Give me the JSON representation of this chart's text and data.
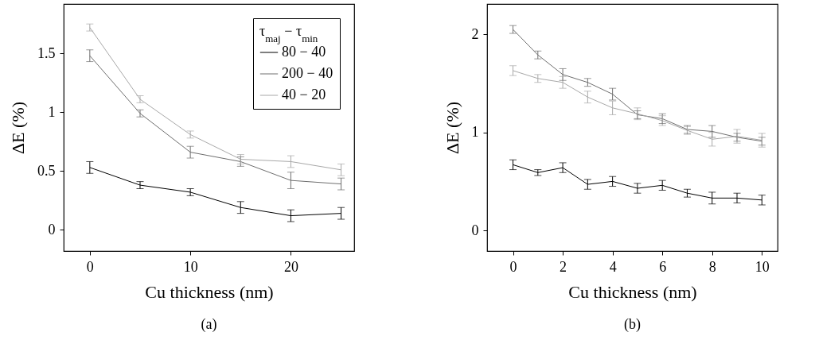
{
  "chart_data": [
    {
      "type": "line",
      "xlabel": "Cu thickness (nm)",
      "ylabel": "ΔE (%)",
      "annotations": [
        "(a)"
      ],
      "legend_title": "τ$_{maj}$ − τ$_{min}$",
      "legend": "top right",
      "marker": "none",
      "x": [
        0,
        5,
        10,
        15,
        20,
        25
      ],
      "xlim": [
        -2.6,
        26.3
      ],
      "xticks": [
        0,
        10,
        20
      ],
      "ylim": [
        -0.18,
        1.92
      ],
      "yticks": [
        0,
        0.5,
        1,
        1.5
      ],
      "series": [
        {
          "name": "80 − 40",
          "color": "#000000",
          "values": [
            0.53,
            0.38,
            0.32,
            0.19,
            0.12,
            0.14
          ],
          "errors": [
            0.05,
            0.03,
            0.03,
            0.05,
            0.05,
            0.05
          ]
        },
        {
          "name": "200 − 40",
          "color": "#6e6e6e",
          "values": [
            1.48,
            0.99,
            0.66,
            0.58,
            0.42,
            0.39
          ],
          "errors": [
            0.05,
            0.03,
            0.05,
            0.04,
            0.07,
            0.05
          ]
        },
        {
          "name": "40 − 20",
          "color": "#a8a8a8",
          "values": [
            1.72,
            1.11,
            0.81,
            0.6,
            0.58,
            0.51
          ],
          "errors": [
            0.03,
            0.03,
            0.03,
            0.04,
            0.05,
            0.05
          ]
        }
      ]
    },
    {
      "type": "line",
      "xlabel": "Cu thickness (nm)",
      "ylabel": "ΔE (%)",
      "annotations": [
        "(b)"
      ],
      "marker": "none",
      "x": [
        0,
        1,
        2,
        3,
        4,
        5,
        6,
        7,
        8,
        9,
        10
      ],
      "xlim": [
        -1.04,
        10.63
      ],
      "xticks": [
        0,
        2,
        4,
        6,
        8,
        10
      ],
      "ylim": [
        -0.21,
        2.31
      ],
      "yticks": [
        0,
        1,
        2
      ],
      "series": [
        {
          "color": "#000000",
          "values": [
            0.67,
            0.59,
            0.64,
            0.47,
            0.5,
            0.43,
            0.46,
            0.38,
            0.33,
            0.33,
            0.31
          ],
          "errors": [
            0.05,
            0.03,
            0.05,
            0.05,
            0.05,
            0.05,
            0.05,
            0.04,
            0.06,
            0.05,
            0.05
          ]
        },
        {
          "color": "#6e6e6e",
          "values": [
            2.05,
            1.79,
            1.59,
            1.51,
            1.39,
            1.18,
            1.14,
            1.03,
            1.01,
            0.95,
            0.91
          ],
          "errors": [
            0.04,
            0.04,
            0.06,
            0.04,
            0.06,
            0.04,
            0.05,
            0.04,
            0.06,
            0.04,
            0.04
          ]
        },
        {
          "color": "#a8a8a8",
          "values": [
            1.63,
            1.55,
            1.51,
            1.36,
            1.25,
            1.19,
            1.12,
            1.02,
            0.93,
            0.96,
            0.92
          ],
          "errors": [
            0.05,
            0.04,
            0.06,
            0.06,
            0.07,
            0.06,
            0.05,
            0.04,
            0.07,
            0.07,
            0.07
          ]
        }
      ]
    }
  ]
}
